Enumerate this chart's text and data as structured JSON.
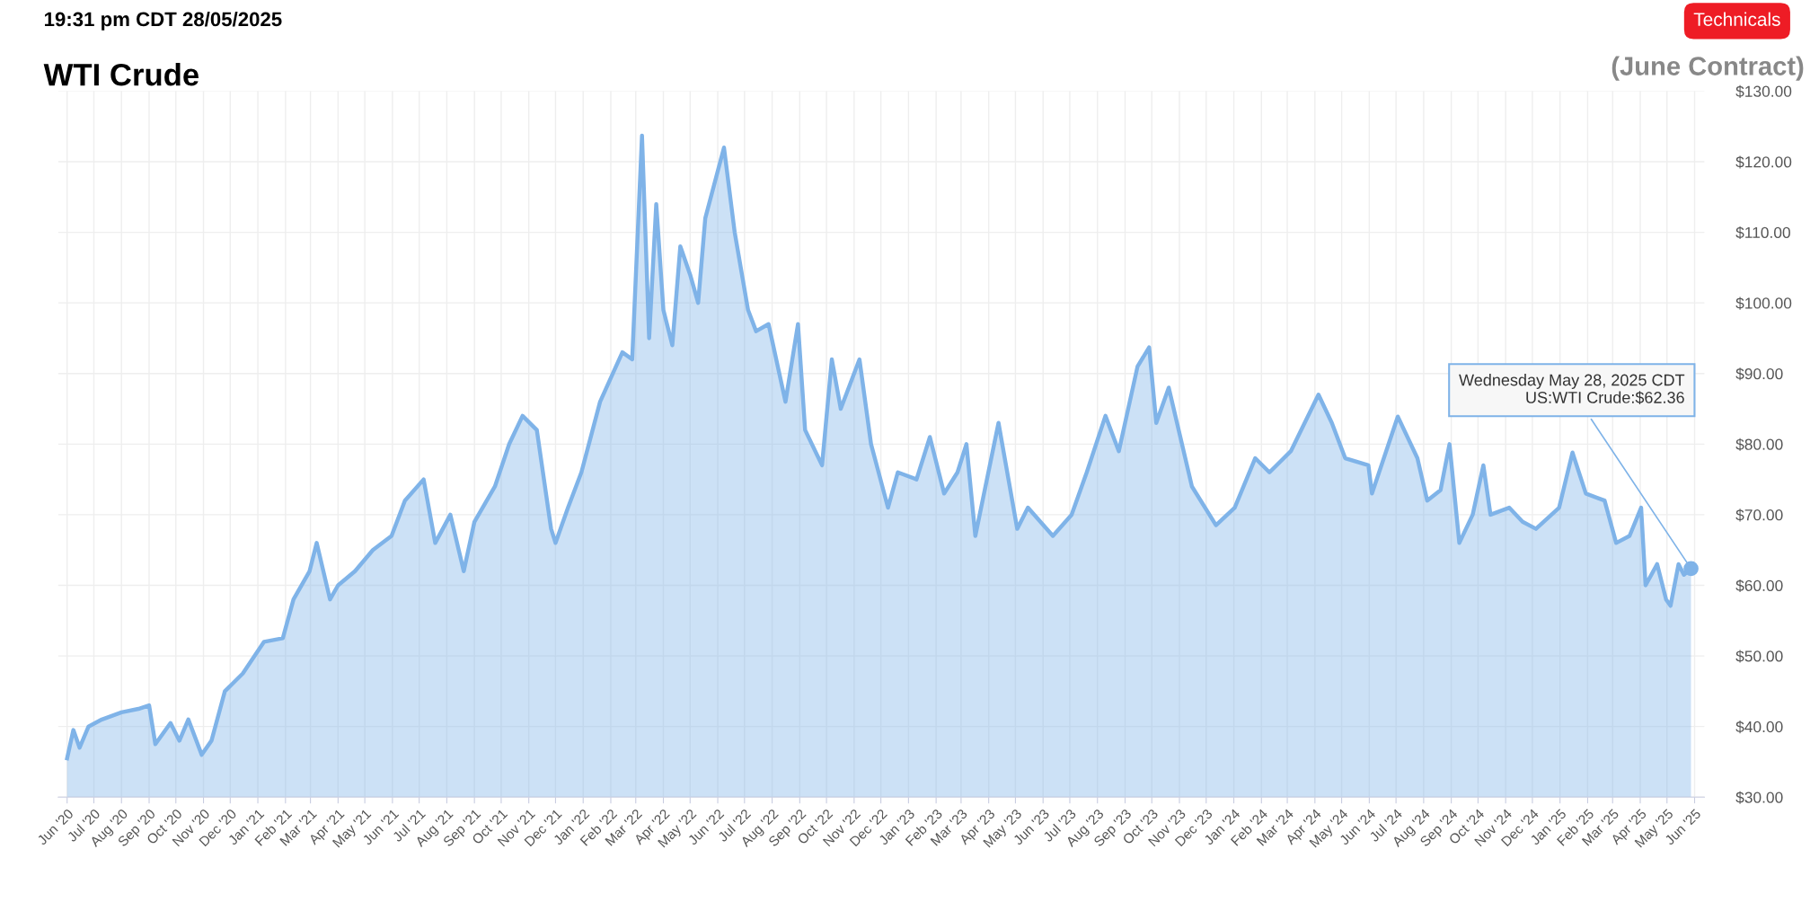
{
  "chart_data": {
    "type": "area",
    "title": "WTI Crude",
    "subtitle": "(June Contract)",
    "annotations": [
      "19:31 pm CDT 28/05/2025",
      "Technicals",
      {
        "text": "Wednesday May 28, 2025 CDT\nUS:WTI Crude:$62.36",
        "x": "2025-05-28",
        "y": 62.36
      }
    ],
    "series": [
      {
        "color": "#7fb3e8",
        "x": [
          "2020-06-01",
          "2020-06-08",
          "2020-06-15",
          "2020-06-25",
          "2020-07-10",
          "2020-08-01",
          "2020-08-20",
          "2020-09-01",
          "2020-09-08",
          "2020-09-25",
          "2020-10-05",
          "2020-10-15",
          "2020-10-30",
          "2020-11-10",
          "2020-11-25",
          "2020-12-15",
          "2021-01-08",
          "2021-01-29",
          "2021-02-10",
          "2021-02-28",
          "2021-03-08",
          "2021-03-23",
          "2021-04-01",
          "2021-04-20",
          "2021-05-10",
          "2021-05-31",
          "2021-06-15",
          "2021-07-06",
          "2021-07-19",
          "2021-08-05",
          "2021-08-20",
          "2021-09-01",
          "2021-09-24",
          "2021-10-10",
          "2021-10-25",
          "2021-11-10",
          "2021-11-26",
          "2021-12-01",
          "2021-12-15",
          "2021-12-30",
          "2022-01-20",
          "2022-02-14",
          "2022-02-25",
          "2022-03-08",
          "2022-03-16",
          "2022-03-24",
          "2022-04-01",
          "2022-04-11",
          "2022-04-20",
          "2022-05-01",
          "2022-05-10",
          "2022-05-18",
          "2022-06-08",
          "2022-06-20",
          "2022-07-05",
          "2022-07-14",
          "2022-07-28",
          "2022-08-16",
          "2022-08-30",
          "2022-09-07",
          "2022-09-26",
          "2022-10-07",
          "2022-10-17",
          "2022-11-07",
          "2022-11-20",
          "2022-12-09",
          "2022-12-20",
          "2023-01-10",
          "2023-01-25",
          "2023-02-10",
          "2023-02-25",
          "2023-03-07",
          "2023-03-17",
          "2023-04-12",
          "2023-05-03",
          "2023-05-15",
          "2023-06-12",
          "2023-07-03",
          "2023-07-20",
          "2023-08-10",
          "2023-08-25",
          "2023-09-15",
          "2023-09-28",
          "2023-10-06",
          "2023-10-20",
          "2023-11-15",
          "2023-12-12",
          "2024-01-02",
          "2024-01-25",
          "2024-02-10",
          "2024-03-05",
          "2024-04-05",
          "2024-04-20",
          "2024-05-05",
          "2024-05-31",
          "2024-06-04",
          "2024-07-03",
          "2024-07-25",
          "2024-08-05",
          "2024-08-20",
          "2024-08-30",
          "2024-09-10",
          "2024-09-25",
          "2024-10-07",
          "2024-10-15",
          "2024-11-05",
          "2024-11-20",
          "2024-12-05",
          "2024-12-31",
          "2025-01-15",
          "2025-01-30",
          "2025-02-20",
          "2025-03-05",
          "2025-03-20",
          "2025-04-02",
          "2025-04-07",
          "2025-04-20",
          "2025-04-30",
          "2025-05-05",
          "2025-05-14",
          "2025-05-20",
          "2025-05-28"
        ],
        "values": [
          35.5,
          39.5,
          37,
          40,
          41,
          42,
          42.5,
          43,
          37.5,
          40.5,
          38,
          41,
          36,
          38,
          45,
          47.5,
          52,
          52.5,
          58,
          62,
          66,
          58,
          60,
          62,
          65,
          67,
          72,
          75,
          66,
          70,
          62,
          69,
          74,
          80,
          84,
          82,
          68,
          66,
          71,
          76,
          86,
          93,
          92,
          123.7,
          95,
          114,
          99,
          94,
          108,
          104,
          100,
          112,
          122,
          110,
          99,
          96,
          97,
          86,
          97,
          82,
          77,
          92,
          85,
          92,
          80,
          71,
          76,
          75,
          81,
          73,
          76,
          80,
          67,
          83,
          68,
          71,
          67,
          70,
          76,
          84,
          79,
          91,
          93.7,
          83,
          88,
          74,
          68.5,
          71,
          78,
          76,
          79,
          87,
          83,
          78,
          77,
          73,
          83.9,
          78,
          72,
          73.5,
          80,
          66,
          70,
          77,
          70,
          71,
          69,
          68,
          71,
          78.8,
          73,
          72,
          66,
          67,
          71,
          60,
          63,
          58,
          57.1,
          63,
          61.5,
          62.36
        ]
      }
    ],
    "xlim": [
      "2020-05-22",
      "2025-06-12"
    ],
    "xticks": [
      {
        "value": "2020-06-01",
        "label": "Jun '20"
      },
      {
        "value": "2020-07-01",
        "label": "Jul '20"
      },
      {
        "value": "2020-08-01",
        "label": "Aug '20"
      },
      {
        "value": "2020-09-01",
        "label": "Sep '20"
      },
      {
        "value": "2020-10-01",
        "label": "Oct '20"
      },
      {
        "value": "2020-11-01",
        "label": "Nov '20"
      },
      {
        "value": "2020-12-01",
        "label": "Dec '20"
      },
      {
        "value": "2021-01-01",
        "label": "Jan '21"
      },
      {
        "value": "2021-02-01",
        "label": "Feb '21"
      },
      {
        "value": "2021-03-01",
        "label": "Mar '21"
      },
      {
        "value": "2021-04-01",
        "label": "Apr '21"
      },
      {
        "value": "2021-05-01",
        "label": "May '21"
      },
      {
        "value": "2021-06-01",
        "label": "Jun '21"
      },
      {
        "value": "2021-07-01",
        "label": "Jul '21"
      },
      {
        "value": "2021-08-01",
        "label": "Aug '21"
      },
      {
        "value": "2021-09-01",
        "label": "Sep '21"
      },
      {
        "value": "2021-10-01",
        "label": "Oct '21"
      },
      {
        "value": "2021-11-01",
        "label": "Nov '21"
      },
      {
        "value": "2021-12-01",
        "label": "Dec '21"
      },
      {
        "value": "2022-01-01",
        "label": "Jan '22"
      },
      {
        "value": "2022-02-01",
        "label": "Feb '22"
      },
      {
        "value": "2022-03-01",
        "label": "Mar '22"
      },
      {
        "value": "2022-04-01",
        "label": "Apr '22"
      },
      {
        "value": "2022-05-01",
        "label": "May '22"
      },
      {
        "value": "2022-06-01",
        "label": "Jun '22"
      },
      {
        "value": "2022-07-01",
        "label": "Jul '22"
      },
      {
        "value": "2022-08-01",
        "label": "Aug '22"
      },
      {
        "value": "2022-09-01",
        "label": "Sep '22"
      },
      {
        "value": "2022-10-01",
        "label": "Oct '22"
      },
      {
        "value": "2022-11-01",
        "label": "Nov '22"
      },
      {
        "value": "2022-12-01",
        "label": "Dec '22"
      },
      {
        "value": "2023-01-01",
        "label": "Jan '23"
      },
      {
        "value": "2023-02-01",
        "label": "Feb '23"
      },
      {
        "value": "2023-03-01",
        "label": "Mar '23"
      },
      {
        "value": "2023-04-01",
        "label": "Apr '23"
      },
      {
        "value": "2023-05-01",
        "label": "May '23"
      },
      {
        "value": "2023-06-01",
        "label": "Jun '23"
      },
      {
        "value": "2023-07-01",
        "label": "Jul '23"
      },
      {
        "value": "2023-08-01",
        "label": "Aug '23"
      },
      {
        "value": "2023-09-01",
        "label": "Sep '23"
      },
      {
        "value": "2023-10-01",
        "label": "Oct '23"
      },
      {
        "value": "2023-11-01",
        "label": "Nov '23"
      },
      {
        "value": "2023-12-01",
        "label": "Dec '23"
      },
      {
        "value": "2024-01-01",
        "label": "Jan '24"
      },
      {
        "value": "2024-02-01",
        "label": "Feb '24"
      },
      {
        "value": "2024-03-01",
        "label": "Mar '24"
      },
      {
        "value": "2024-04-01",
        "label": "Apr '24"
      },
      {
        "value": "2024-05-01",
        "label": "May '24"
      },
      {
        "value": "2024-06-01",
        "label": "Jun '24"
      },
      {
        "value": "2024-07-01",
        "label": "Jul '24"
      },
      {
        "value": "2024-08-01",
        "label": "Aug '24"
      },
      {
        "value": "2024-09-01",
        "label": "Sep '24"
      },
      {
        "value": "2024-10-01",
        "label": "Oct '24"
      },
      {
        "value": "2024-11-01",
        "label": "Nov '24"
      },
      {
        "value": "2024-12-01",
        "label": "Dec '24"
      },
      {
        "value": "2025-01-01",
        "label": "Jan '25"
      },
      {
        "value": "2025-02-01",
        "label": "Feb '25"
      },
      {
        "value": "2025-03-01",
        "label": "Mar '25"
      },
      {
        "value": "2025-04-01",
        "label": "Apr '25"
      },
      {
        "value": "2025-05-01",
        "label": "May '25"
      },
      {
        "value": "2025-06-01",
        "label": "Jun '25"
      }
    ],
    "ylim": [
      30,
      130
    ],
    "yticks": [
      {
        "value": 30,
        "label": "$30.00"
      },
      {
        "value": 40,
        "label": "$40.00"
      },
      {
        "value": 50,
        "label": "$50.00"
      },
      {
        "value": 60,
        "label": "$60.00"
      },
      {
        "value": 70,
        "label": "$70.00"
      },
      {
        "value": 80,
        "label": "$80.00"
      },
      {
        "value": 90,
        "label": "$90.00"
      },
      {
        "value": 100,
        "label": "$100.00"
      },
      {
        "value": 110,
        "label": "$110.00"
      },
      {
        "value": 120,
        "label": "$120.00"
      },
      {
        "value": 130,
        "label": "$130.00"
      }
    ],
    "grid": true,
    "legend": false
  }
}
